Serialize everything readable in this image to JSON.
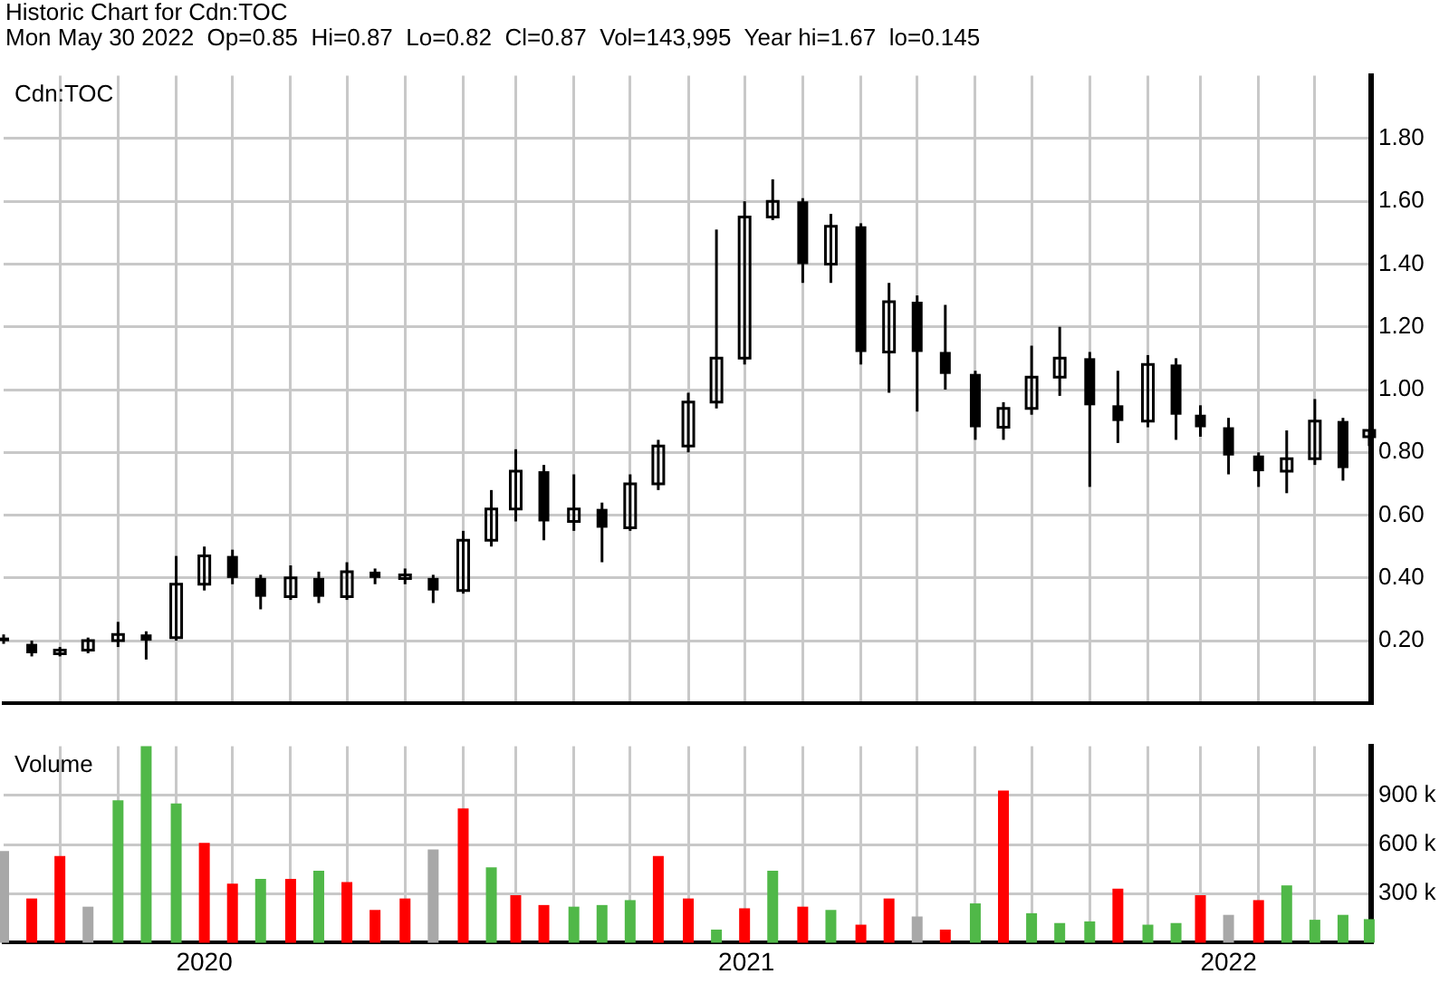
{
  "chart_data": [
    {
      "type": "candlestick",
      "title": "Historic Chart for Cdn:TOC",
      "subtitle": "Mon May 30 2022  Op=0.85  Hi=0.87  Lo=0.82  Cl=0.87  Vol=143,995  Year hi=1.67  lo=0.145",
      "annotations": [
        "Cdn:TOC"
      ],
      "x": [
        "2020-06-01",
        "2020-06-16",
        "2020-07-01",
        "2020-07-16",
        "2020-08-01",
        "2020-08-16",
        "2020-09-01",
        "2020-09-16",
        "2020-10-01",
        "2020-10-16",
        "2020-11-01",
        "2020-11-16",
        "2020-12-01",
        "2020-12-16",
        "2021-01-01",
        "2021-01-16",
        "2021-02-01",
        "2021-02-16",
        "2021-03-01",
        "2021-03-16",
        "2021-04-01",
        "2021-04-16",
        "2021-05-01",
        "2021-05-16",
        "2021-06-01",
        "2021-06-16",
        "2021-07-01",
        "2021-07-16",
        "2021-08-01",
        "2021-08-16",
        "2021-09-01",
        "2021-09-16",
        "2021-10-01",
        "2021-10-16",
        "2021-11-01",
        "2021-11-16",
        "2021-12-01",
        "2021-12-16",
        "2022-01-01",
        "2022-01-16",
        "2022-02-01",
        "2022-02-16",
        "2022-03-01",
        "2022-03-16",
        "2022-04-01",
        "2022-04-16",
        "2022-05-01",
        "2022-05-16",
        "2022-05-30"
      ],
      "ohlc": [
        [
          0.21,
          0.22,
          0.19,
          0.2
        ],
        [
          0.19,
          0.2,
          0.15,
          0.16
        ],
        [
          0.16,
          0.18,
          0.15,
          0.17
        ],
        [
          0.17,
          0.21,
          0.16,
          0.2
        ],
        [
          0.2,
          0.26,
          0.18,
          0.22
        ],
        [
          0.22,
          0.23,
          0.14,
          0.2
        ],
        [
          0.21,
          0.47,
          0.2,
          0.38
        ],
        [
          0.38,
          0.5,
          0.36,
          0.47
        ],
        [
          0.47,
          0.49,
          0.38,
          0.4
        ],
        [
          0.4,
          0.41,
          0.3,
          0.34
        ],
        [
          0.34,
          0.44,
          0.33,
          0.4
        ],
        [
          0.4,
          0.42,
          0.32,
          0.34
        ],
        [
          0.34,
          0.45,
          0.33,
          0.42
        ],
        [
          0.42,
          0.43,
          0.38,
          0.4
        ],
        [
          0.4,
          0.43,
          0.38,
          0.41
        ],
        [
          0.4,
          0.41,
          0.32,
          0.36
        ],
        [
          0.36,
          0.55,
          0.35,
          0.52
        ],
        [
          0.52,
          0.68,
          0.5,
          0.62
        ],
        [
          0.62,
          0.81,
          0.58,
          0.74
        ],
        [
          0.74,
          0.76,
          0.52,
          0.58
        ],
        [
          0.58,
          0.73,
          0.55,
          0.62
        ],
        [
          0.62,
          0.64,
          0.45,
          0.56
        ],
        [
          0.56,
          0.73,
          0.55,
          0.7
        ],
        [
          0.7,
          0.84,
          0.68,
          0.82
        ],
        [
          0.82,
          0.99,
          0.8,
          0.96
        ],
        [
          0.96,
          1.51,
          0.94,
          1.1
        ],
        [
          1.1,
          1.6,
          1.08,
          1.55
        ],
        [
          1.55,
          1.67,
          1.54,
          1.6
        ],
        [
          1.6,
          1.61,
          1.34,
          1.4
        ],
        [
          1.4,
          1.56,
          1.34,
          1.52
        ],
        [
          1.52,
          1.53,
          1.08,
          1.12
        ],
        [
          1.12,
          1.34,
          0.99,
          1.28
        ],
        [
          1.28,
          1.3,
          0.93,
          1.12
        ],
        [
          1.12,
          1.27,
          1.0,
          1.05
        ],
        [
          1.05,
          1.06,
          0.84,
          0.88
        ],
        [
          0.88,
          0.96,
          0.84,
          0.94
        ],
        [
          0.94,
          1.14,
          0.92,
          1.04
        ],
        [
          1.04,
          1.2,
          0.98,
          1.1
        ],
        [
          1.1,
          1.12,
          0.69,
          0.95
        ],
        [
          0.95,
          1.06,
          0.83,
          0.9
        ],
        [
          0.9,
          1.11,
          0.88,
          1.08
        ],
        [
          1.08,
          1.1,
          0.84,
          0.92
        ],
        [
          0.92,
          0.95,
          0.85,
          0.88
        ],
        [
          0.88,
          0.91,
          0.73,
          0.79
        ],
        [
          0.79,
          0.8,
          0.69,
          0.74
        ],
        [
          0.74,
          0.87,
          0.67,
          0.78
        ],
        [
          0.78,
          0.97,
          0.76,
          0.9
        ],
        [
          0.9,
          0.91,
          0.71,
          0.75
        ],
        [
          0.85,
          0.87,
          0.82,
          0.87
        ]
      ],
      "color": "#000000",
      "xlim": [
        "2020-06-01",
        "2022-05-31"
      ],
      "xticks": [
        {
          "value": "2020-07-01",
          "label": null
        },
        {
          "value": "2020-08-01",
          "label": null
        },
        {
          "value": "2020-09-01",
          "label": null
        },
        {
          "value": "2020-10-01",
          "label": null
        },
        {
          "value": "2020-11-01",
          "label": null
        },
        {
          "value": "2020-12-01",
          "label": null
        },
        {
          "value": "2021-01-01",
          "label": null
        },
        {
          "value": "2021-02-01",
          "label": null
        },
        {
          "value": "2021-03-01",
          "label": null
        },
        {
          "value": "2021-04-01",
          "label": null
        },
        {
          "value": "2021-05-01",
          "label": null
        },
        {
          "value": "2021-06-01",
          "label": null
        },
        {
          "value": "2021-07-01",
          "label": null
        },
        {
          "value": "2021-08-01",
          "label": null
        },
        {
          "value": "2021-09-01",
          "label": null
        },
        {
          "value": "2021-10-01",
          "label": null
        },
        {
          "value": "2021-11-01",
          "label": null
        },
        {
          "value": "2021-12-01",
          "label": null
        },
        {
          "value": "2022-01-01",
          "label": null
        },
        {
          "value": "2022-02-01",
          "label": null
        },
        {
          "value": "2022-03-01",
          "label": null
        },
        {
          "value": "2022-04-01",
          "label": null
        },
        {
          "value": "2022-05-01",
          "label": null
        }
      ],
      "ylim": [
        0,
        2.0
      ],
      "yticks": [
        {
          "value": 0.2,
          "label": "0.20"
        },
        {
          "value": 0.4,
          "label": "0.40"
        },
        {
          "value": 0.6,
          "label": "0.60"
        },
        {
          "value": 0.8,
          "label": "0.80"
        },
        {
          "value": 1.0,
          "label": "1.00"
        },
        {
          "value": 1.2,
          "label": "1.20"
        },
        {
          "value": 1.4,
          "label": "1.40"
        },
        {
          "value": 1.6,
          "label": "1.60"
        },
        {
          "value": 1.8,
          "label": "1.80"
        }
      ],
      "grid": true,
      "legend": false,
      "tick_labels": "y"
    },
    {
      "type": "bar",
      "annotations": [
        "Volume"
      ],
      "x": [
        "2020-06-01",
        "2020-06-16",
        "2020-07-01",
        "2020-07-16",
        "2020-08-01",
        "2020-08-16",
        "2020-09-01",
        "2020-09-16",
        "2020-10-01",
        "2020-10-16",
        "2020-11-01",
        "2020-11-16",
        "2020-12-01",
        "2020-12-16",
        "2021-01-01",
        "2021-01-16",
        "2021-02-01",
        "2021-02-16",
        "2021-03-01",
        "2021-03-16",
        "2021-04-01",
        "2021-04-16",
        "2021-05-01",
        "2021-05-16",
        "2021-06-01",
        "2021-06-16",
        "2021-07-01",
        "2021-07-16",
        "2021-08-01",
        "2021-08-16",
        "2021-09-01",
        "2021-09-16",
        "2021-10-01",
        "2021-10-16",
        "2021-11-01",
        "2021-11-16",
        "2021-12-01",
        "2021-12-16",
        "2022-01-01",
        "2022-01-16",
        "2022-02-01",
        "2022-02-16",
        "2022-03-01",
        "2022-03-16",
        "2022-04-01",
        "2022-04-16",
        "2022-05-01",
        "2022-05-16",
        "2022-05-30"
      ],
      "values": [
        560000,
        270000,
        530000,
        220000,
        870000,
        1200000,
        850000,
        610000,
        360000,
        390000,
        390000,
        440000,
        370000,
        200000,
        270000,
        570000,
        820000,
        460000,
        290000,
        230000,
        220000,
        230000,
        260000,
        530000,
        270000,
        80000,
        210000,
        440000,
        220000,
        200000,
        110000,
        270000,
        160000,
        80000,
        240000,
        930000,
        180000,
        120000,
        130000,
        330000,
        110000,
        120000,
        290000,
        170000,
        260000,
        350000,
        140000,
        170000,
        143995
      ],
      "colors": [
        "#a8a8a8",
        "#ff0000",
        "#ff0000",
        "#a8a8a8",
        "#50b848",
        "#50b848",
        "#50b848",
        "#ff0000",
        "#ff0000",
        "#50b848",
        "#ff0000",
        "#50b848",
        "#ff0000",
        "#ff0000",
        "#ff0000",
        "#a8a8a8",
        "#ff0000",
        "#50b848",
        "#ff0000",
        "#ff0000",
        "#50b848",
        "#50b848",
        "#50b848",
        "#ff0000",
        "#ff0000",
        "#50b848",
        "#ff0000",
        "#50b848",
        "#ff0000",
        "#50b848",
        "#ff0000",
        "#ff0000",
        "#a8a8a8",
        "#ff0000",
        "#50b848",
        "#ff0000",
        "#50b848",
        "#50b848",
        "#50b848",
        "#ff0000",
        "#50b848",
        "#50b848",
        "#ff0000",
        "#a8a8a8",
        "#ff0000",
        "#50b848",
        "#50b848",
        "#50b848",
        "#50b848"
      ],
      "xlim": [
        "2020-06-01",
        "2022-05-31"
      ],
      "xticks": [
        {
          "value": "2020-07-01",
          "label": null
        },
        {
          "value": "2020-08-01",
          "label": null
        },
        {
          "value": "2020-09-01",
          "label": null
        },
        {
          "value": "2020-10-01",
          "label": null
        },
        {
          "value": "2020-11-01",
          "label": null
        },
        {
          "value": "2020-12-01",
          "label": null
        },
        {
          "value": "2021-01-01",
          "label": null
        },
        {
          "value": "2021-02-01",
          "label": null
        },
        {
          "value": "2021-03-01",
          "label": null
        },
        {
          "value": "2021-04-01",
          "label": null
        },
        {
          "value": "2021-05-01",
          "label": null
        },
        {
          "value": "2021-06-01",
          "label": null
        },
        {
          "value": "2021-07-01",
          "label": null
        },
        {
          "value": "2021-08-01",
          "label": null
        },
        {
          "value": "2021-09-01",
          "label": null
        },
        {
          "value": "2021-10-01",
          "label": null
        },
        {
          "value": "2021-11-01",
          "label": null
        },
        {
          "value": "2021-12-01",
          "label": null
        },
        {
          "value": "2022-01-01",
          "label": null
        },
        {
          "value": "2022-02-01",
          "label": null
        },
        {
          "value": "2022-03-01",
          "label": null
        },
        {
          "value": "2022-04-01",
          "label": null
        },
        {
          "value": "2022-05-01",
          "label": null
        },
        {
          "value": "2020-09-16",
          "label": "2020"
        },
        {
          "value": "2021-07-02",
          "label": "2021"
        },
        {
          "value": "2022-03-16",
          "label": "2022"
        }
      ],
      "ylim": [
        0,
        1200000
      ],
      "yticks": [
        {
          "value": 300000,
          "label": "300 k"
        },
        {
          "value": 600000,
          "label": "600 k"
        },
        {
          "value": 900000,
          "label": "900 k"
        }
      ],
      "grid": true,
      "legend": false
    }
  ]
}
